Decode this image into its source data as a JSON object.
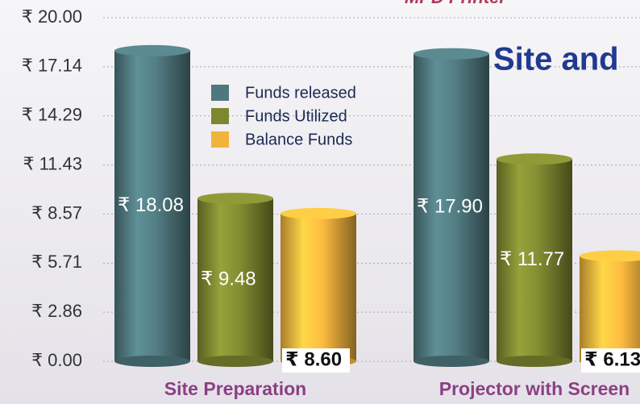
{
  "chart_data": {
    "type": "bar",
    "title": "Site and",
    "subtitle": "MPD Printer",
    "categories": [
      "Site Preparation",
      "Projector with Screen"
    ],
    "series": [
      {
        "name": "Funds released",
        "color": "#4f787e",
        "values": [
          18.08,
          17.9
        ],
        "value_labels": [
          "₹ 18.08",
          "₹ 17.90"
        ]
      },
      {
        "name": "Funds Utilized",
        "color": "#7d8730",
        "values": [
          9.48,
          11.77
        ],
        "value_labels": [
          "₹ 9.48",
          "₹ 11.77"
        ]
      },
      {
        "name": "Balance Funds",
        "color": "#f2b33c",
        "values": [
          8.6,
          6.13
        ],
        "value_labels": [
          "₹ 8.60",
          "₹ 6.13"
        ]
      }
    ],
    "ylim": [
      0,
      20
    ],
    "yticks": [
      {
        "value": 0,
        "label": "₹ 0.00"
      },
      {
        "value": 2.86,
        "label": "₹ 2.86"
      },
      {
        "value": 5.71,
        "label": "₹ 5.71"
      },
      {
        "value": 8.57,
        "label": "₹ 8.57"
      },
      {
        "value": 11.43,
        "label": "₹ 11.43"
      },
      {
        "value": 14.29,
        "label": "₹ 14.29"
      },
      {
        "value": 17.14,
        "label": "₹ 17.14"
      },
      {
        "value": 20,
        "label": "₹ 20.00"
      }
    ],
    "grid": true
  }
}
